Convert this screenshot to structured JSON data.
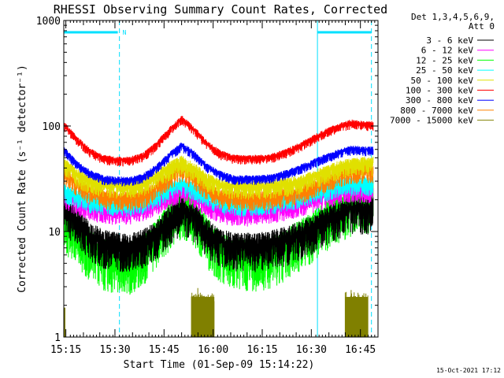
{
  "chart_data": {
    "type": "line",
    "title": "RHESSI Observing Summary Count Rates, Corrected",
    "xlabel": "Start Time (01-Sep-09 15:14:22)",
    "ylabel": "Corrected Count Rate (s⁻¹ detector⁻¹)",
    "yscale": "log",
    "ylim": [
      1,
      1000
    ],
    "yticks": [
      1,
      10,
      100,
      1000
    ],
    "ytick_labels": [
      "1",
      "10",
      "100",
      "1000"
    ],
    "xlim_minutes": [
      0,
      96
    ],
    "xticks_minutes": [
      0.63,
      15.63,
      30.63,
      45.63,
      60.63,
      75.63,
      90.63
    ],
    "xtick_labels": [
      "15:15",
      "15:30",
      "15:45",
      "16:00",
      "16:15",
      "16:30",
      "16:45"
    ],
    "x_minutes": [
      0,
      4,
      8,
      12,
      16,
      20,
      24,
      28,
      32,
      36,
      40,
      44,
      48,
      52,
      56,
      60,
      64,
      68,
      72,
      76,
      80,
      84,
      88,
      92
    ],
    "legend_header": [
      "Det 1,3,4,5,6,9,",
      "Att 0"
    ],
    "legend_position": "right",
    "series": [
      {
        "name": "3 - 6 keV",
        "color": "#000000",
        "noise": 0.6,
        "values": [
          17,
          13,
          9.5,
          8,
          7.5,
          7.5,
          8,
          9.5,
          13,
          17,
          14,
          10,
          8,
          7.5,
          7.5,
          7.5,
          8,
          8.5,
          9.5,
          11,
          13,
          15,
          17,
          17
        ]
      },
      {
        "name": "6 - 12 keV",
        "color": "#ff00ff",
        "noise": 0.3,
        "values": [
          22,
          19,
          17,
          16,
          15.5,
          15.5,
          16.5,
          19,
          22,
          25,
          22,
          18,
          16,
          15,
          15,
          15.5,
          16,
          17,
          18.5,
          20,
          22,
          24,
          25,
          25
        ]
      },
      {
        "name": "12 - 25 keV",
        "color": "#00ff00",
        "noise": 0.8,
        "values": [
          14,
          10,
          7.5,
          6,
          5.5,
          5.5,
          6.5,
          9,
          14,
          19,
          15,
          9.5,
          7,
          6,
          6,
          6,
          6.5,
          7.5,
          9,
          11,
          14,
          17,
          20,
          21
        ]
      },
      {
        "name": "25 - 50 keV",
        "color": "#00ffff",
        "noise": 0.3,
        "values": [
          25,
          22,
          20,
          19,
          18.5,
          18.5,
          19.5,
          22,
          26,
          29,
          26,
          22,
          19.5,
          18.5,
          18.5,
          19,
          19.5,
          20.5,
          22,
          24,
          26,
          28,
          29,
          29
        ]
      },
      {
        "name": "50 - 100 keV",
        "color": "#e0e000",
        "noise": 0.3,
        "values": [
          44,
          35,
          30,
          28,
          27.5,
          27.5,
          28.5,
          33,
          40,
          46,
          39,
          31,
          28,
          27,
          27,
          27,
          27.5,
          28.5,
          30,
          33,
          37,
          41,
          44,
          45
        ]
      },
      {
        "name": "100 - 300 keV",
        "color": "#ff0000",
        "noise": 0.15,
        "values": [
          105,
          75,
          58,
          50,
          48,
          48,
          52,
          65,
          90,
          118,
          92,
          67,
          55,
          50,
          50,
          50,
          52,
          57,
          65,
          76,
          88,
          100,
          108,
          104
        ]
      },
      {
        "name": "300 - 800 keV",
        "color": "#0000ff",
        "noise": 0.15,
        "values": [
          60,
          44,
          36,
          32,
          31,
          31,
          33,
          40,
          52,
          66,
          54,
          41,
          35,
          32,
          32,
          32,
          33,
          36,
          40,
          45,
          51,
          57,
          61,
          60
        ]
      },
      {
        "name": "800 - 7000 keV",
        "color": "#ff8000",
        "noise": 0.3,
        "values": [
          37,
          29,
          24,
          22,
          21,
          21,
          22,
          26,
          33,
          39,
          33,
          26,
          22,
          21,
          21,
          21,
          21.5,
          22.5,
          24,
          27,
          31,
          35,
          38,
          38
        ]
      },
      {
        "name": "7000 - 15000 keV",
        "color": "#808000",
        "noise": 0,
        "values": [
          1,
          1,
          1,
          1,
          1,
          1,
          1,
          1,
          1,
          1,
          1,
          1,
          1,
          1,
          1,
          1,
          1,
          1,
          1,
          1,
          1,
          1,
          1,
          1
        ],
        "bursts": [
          {
            "x_start": 39,
            "x_end": 46,
            "peak": 3
          },
          {
            "x_start": 86,
            "x_end": 93,
            "peak": 3
          }
        ]
      }
    ],
    "orbit_marks": {
      "color": "#00e0ff",
      "solid_x_minutes": [
        0,
        77.5
      ],
      "dashed_x_minutes": [
        17,
        94
      ],
      "bars": [
        {
          "x_start": 0,
          "x_end": 16.5,
          "label": "N"
        },
        {
          "x_start": 77.5,
          "x_end": 94,
          "label": ""
        }
      ]
    },
    "grid": false
  },
  "footer": {
    "timestamp": "15-Oct-2021 17:12"
  }
}
